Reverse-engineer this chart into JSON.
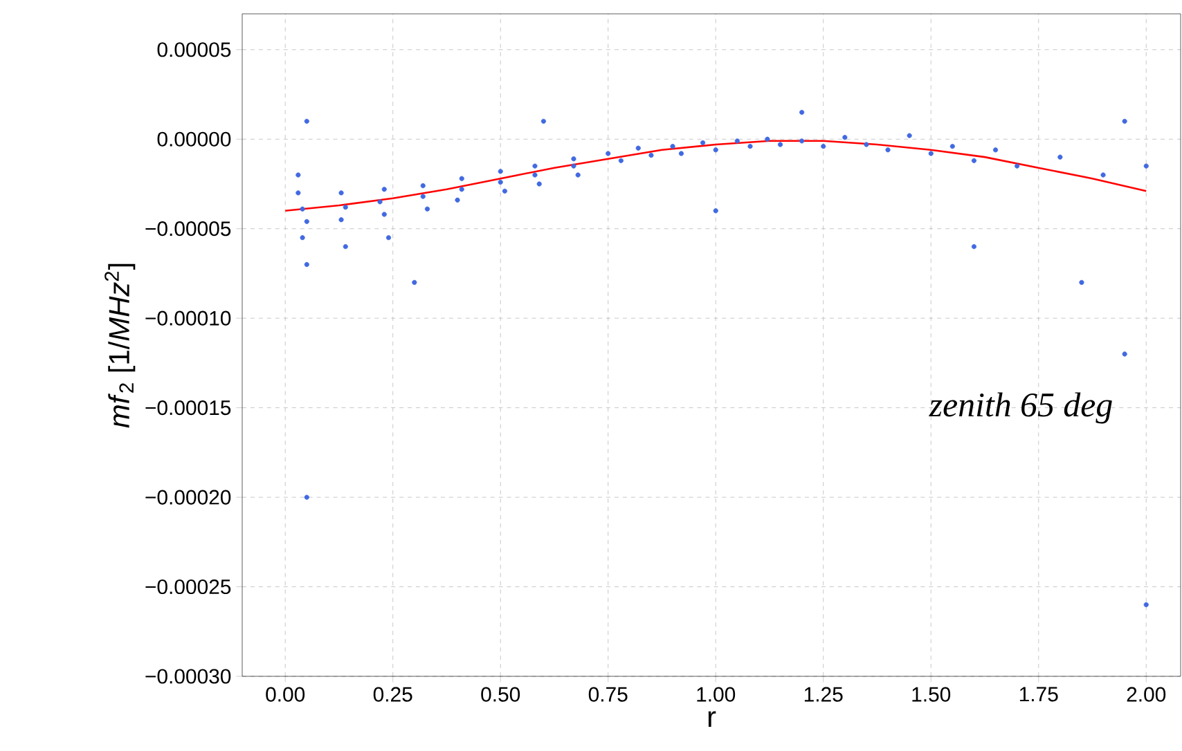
{
  "chart_data": {
    "type": "scatter",
    "xlabel": "r",
    "ylabel": "*mf*$_{2}$ [1/*MHz*$^{2}$]",
    "annotations": [
      "zenith 65 deg"
    ],
    "xlim": [
      -0.1,
      2.08
    ],
    "ylim": [
      -0.0003,
      7e-05
    ],
    "xticks": [
      {
        "value": 0,
        "label": "0.00"
      },
      {
        "value": 0.25,
        "label": "0.25"
      },
      {
        "value": 0.5,
        "label": "0.50"
      },
      {
        "value": 0.75,
        "label": "0.75"
      },
      {
        "value": 1,
        "label": "1.00"
      },
      {
        "value": 1.25,
        "label": "1.25"
      },
      {
        "value": 1.5,
        "label": "1.50"
      },
      {
        "value": 1.75,
        "label": "1.75"
      },
      {
        "value": 2,
        "label": "2.00"
      }
    ],
    "yticks": [
      {
        "value": 5e-05,
        "label": "0.00005"
      },
      {
        "value": 0,
        "label": "0.00000"
      },
      {
        "value": -5e-05,
        "label": "−0.00005"
      },
      {
        "value": -0.0001,
        "label": "−0.00010"
      },
      {
        "value": -0.00015,
        "label": "−0.00015"
      },
      {
        "value": -0.0002,
        "label": "−0.00020"
      },
      {
        "value": -0.00025,
        "label": "−0.00025"
      },
      {
        "value": -0.0003,
        "label": "−0.00030"
      }
    ],
    "grid": true,
    "series": [
      {
        "marker": "circle",
        "color": "#4169e1",
        "x": [
          0.03,
          0.04,
          0.05,
          0.04,
          0.03,
          0.05,
          0.13,
          0.14,
          0.13,
          0.14,
          0.23,
          0.22,
          0.23,
          0.24,
          0.32,
          0.32,
          0.33,
          0.41,
          0.41,
          0.4,
          0.5,
          0.5,
          0.51,
          0.58,
          0.58,
          0.59,
          0.67,
          0.67,
          0.68,
          0.75,
          0.78,
          0.82,
          0.85,
          0.9,
          0.92,
          0.97,
          1.0,
          1.05,
          1.08,
          1.12,
          1.15,
          1.2,
          1.25,
          1.3,
          1.35,
          1.4,
          1.45,
          1.5,
          1.55,
          1.6,
          1.65,
          1.7,
          1.8,
          1.9,
          2.0,
          1.95,
          1.2,
          0.6,
          0.05,
          0.3,
          1.0,
          1.6,
          1.95,
          2.0,
          0.05,
          1.85
        ],
        "values": [
          -3e-05,
          -3.9e-05,
          -4.6e-05,
          -5.5e-05,
          -2e-05,
          -7e-05,
          -3e-05,
          -3.8e-05,
          -4.5e-05,
          -6e-05,
          -2.8e-05,
          -3.5e-05,
          -4.2e-05,
          -5.5e-05,
          -2.6e-05,
          -3.2e-05,
          -3.9e-05,
          -2.2e-05,
          -2.8e-05,
          -3.4e-05,
          -1.8e-05,
          -2.4e-05,
          -2.9e-05,
          -1.5e-05,
          -2e-05,
          -2.5e-05,
          -1.1e-05,
          -1.5e-05,
          -2e-05,
          -8e-06,
          -1.2e-05,
          -5e-06,
          -9e-06,
          -4e-06,
          -8e-06,
          -2e-06,
          -6e-06,
          -1e-06,
          -4e-06,
          0.0,
          -3e-06,
          -1e-06,
          -4e-06,
          1e-06,
          -3e-06,
          -6e-06,
          2e-06,
          -8e-06,
          -4e-06,
          -1.2e-05,
          -6e-06,
          -1.5e-05,
          -1e-05,
          -2e-05,
          -1.5e-05,
          1e-05,
          1.5e-05,
          1e-05,
          1e-05,
          -8e-05,
          -4e-05,
          -6e-05,
          -0.00012,
          -0.00026,
          -0.0002,
          -8e-05
        ]
      },
      {
        "type": "line",
        "color": "#ff0000",
        "x": [
          0,
          0.125,
          0.25,
          0.375,
          0.5,
          0.625,
          0.75,
          0.875,
          1.0,
          1.125,
          1.25,
          1.375,
          1.5,
          1.625,
          1.75,
          1.875,
          2.0
        ],
        "values": [
          -4e-05,
          -3.7e-05,
          -3.3e-05,
          -2.8e-05,
          -2.2e-05,
          -1.6e-05,
          -1.1e-05,
          -6e-06,
          -3e-06,
          -1e-06,
          -1e-06,
          -3e-06,
          -6e-06,
          -1e-05,
          -1.6e-05,
          -2.2e-05,
          -2.9e-05
        ]
      }
    ]
  }
}
